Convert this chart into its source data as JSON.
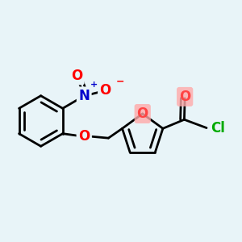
{
  "background_color": "#e8f4f8",
  "bond_color": "#000000",
  "bond_width": 2.0,
  "figsize": [
    3.0,
    3.0
  ],
  "dpi": 100,
  "xlim": [
    -2.5,
    5.5
  ],
  "ylim": [
    -2.8,
    3.2
  ],
  "colors": {
    "C": "#000000",
    "O": "#ff0000",
    "N": "#0000cc",
    "Cl": "#00aa00",
    "O_highlight": "#ff4444",
    "O_bg": "#ffaaaa"
  }
}
